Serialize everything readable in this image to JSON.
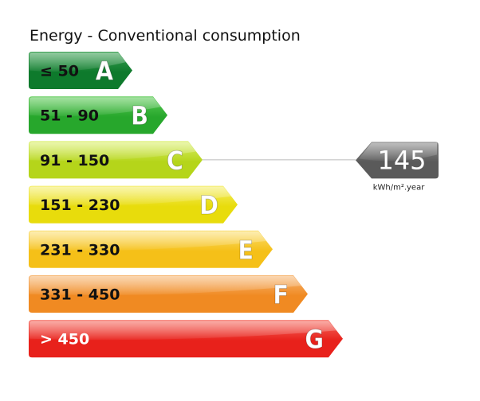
{
  "title": "Energy - Conventional consumption",
  "classes": [
    {
      "letter": "A",
      "range": "≤ 50",
      "color": "#0e7a2c",
      "color_light": "#3aa052",
      "text_color": "#111111"
    },
    {
      "letter": "B",
      "range": "51 - 90",
      "color": "#27a72c",
      "color_light": "#5ccb55",
      "text_color": "#111111"
    },
    {
      "letter": "C",
      "range": "91 - 150",
      "color": "#b5d51a",
      "color_light": "#dbef6d",
      "text_color": "#111111"
    },
    {
      "letter": "D",
      "range": "151 - 230",
      "color": "#e8dc0c",
      "color_light": "#f5ee6a",
      "text_color": "#111111"
    },
    {
      "letter": "E",
      "range": "231 - 330",
      "color": "#f5c018",
      "color_light": "#fbdf73",
      "text_color": "#111111"
    },
    {
      "letter": "F",
      "range": "331 - 450",
      "color": "#f08a22",
      "color_light": "#f7b774",
      "text_color": "#111111"
    },
    {
      "letter": "G",
      "range": "> 450",
      "color": "#e8211b",
      "color_light": "#f56a5f",
      "text_color": "#ffffff"
    }
  ],
  "indicator": {
    "value": "145",
    "unit": "kWh/m².year",
    "class_letter": "C",
    "color": "#5a5a5a",
    "color_light": "#8a8a8a"
  }
}
